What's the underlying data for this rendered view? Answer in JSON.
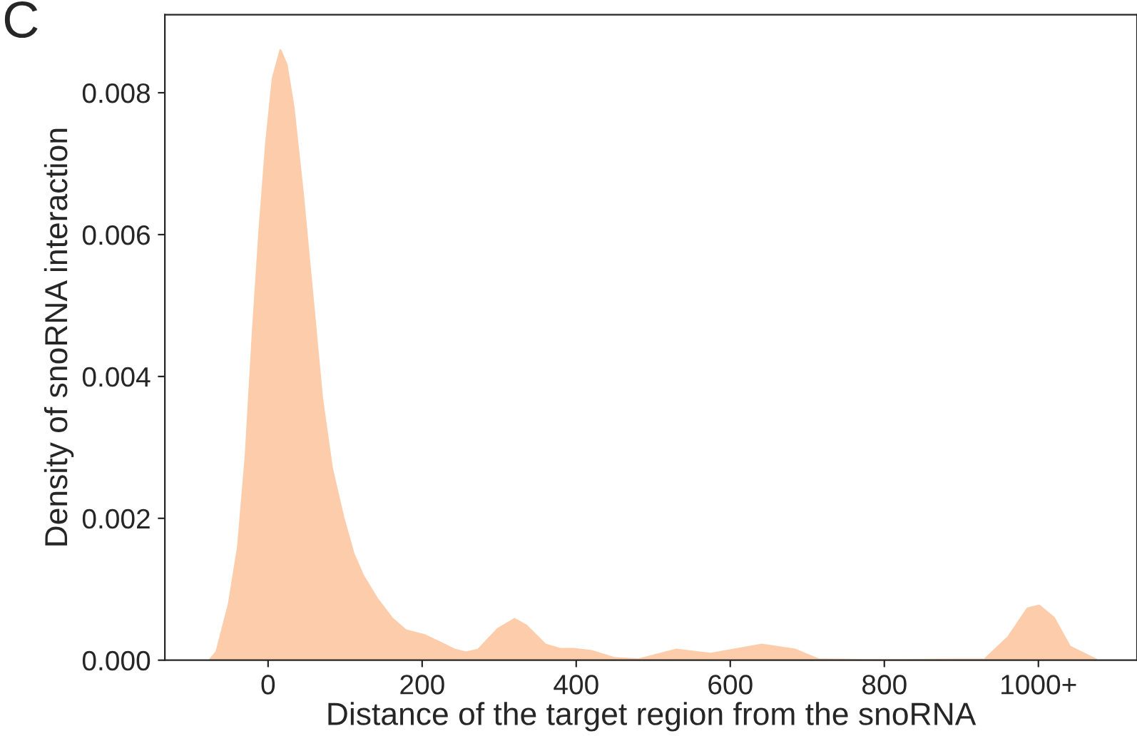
{
  "chart_data": {
    "type": "area",
    "xlabel": "Distance of the target region from the snoRNA",
    "ylabel": "Density of snoRNA interaction",
    "annotations": [
      "C"
    ],
    "x": [
      -76,
      -67,
      -51,
      -39,
      -29,
      -20,
      -11,
      -2.5,
      6,
      16,
      24,
      33,
      45,
      58,
      70,
      83,
      98,
      111,
      123,
      142,
      161,
      179,
      204,
      223,
      242,
      257,
      273,
      298,
      320,
      335,
      360,
      379,
      397,
      420,
      450,
      481,
      530,
      574,
      641,
      684,
      715,
      789,
      930,
      961,
      986,
      1001,
      1020,
      1041,
      1075
    ],
    "series": [
      {
        "color": "#fdcdab",
        "values": [
          0,
          0.00012,
          0.00079,
          0.0016,
          0.0029,
          0.0046,
          0.0061,
          0.0073,
          0.0082,
          0.0086,
          0.0084,
          0.0078,
          0.0066,
          0.0051,
          0.0037,
          0.0027,
          0.002,
          0.0015,
          0.0012,
          0.00086,
          0.00059,
          0.00042,
          0.00035,
          0.00025,
          0.00015,
          0.00011,
          0.00015,
          0.00044,
          0.00058,
          0.00049,
          0.00022,
          0.00016,
          0.00016,
          0.00013,
          3e-05,
          1e-05,
          0.00015,
          9e-05,
          0.00022,
          0.00015,
          1e-05,
          0,
          1e-05,
          0.00033,
          0.00073,
          0.00077,
          0.0006,
          0.00019,
          1e-05
        ]
      }
    ],
    "xlim": [
      -134,
      1128
    ],
    "ylim": [
      0,
      0.0091
    ],
    "xticks": [
      0,
      200,
      400,
      600,
      800,
      {
        "value": 1000,
        "label": "1000+"
      }
    ],
    "yticks": [
      {
        "value": 0,
        "label": "0.000"
      },
      {
        "value": 0.002,
        "label": "0.002"
      },
      {
        "value": 0.004,
        "label": "0.004"
      },
      {
        "value": 0.006,
        "label": "0.006"
      },
      {
        "value": 0.008,
        "label": "0.008"
      }
    ],
    "grid": false,
    "legend": false
  }
}
